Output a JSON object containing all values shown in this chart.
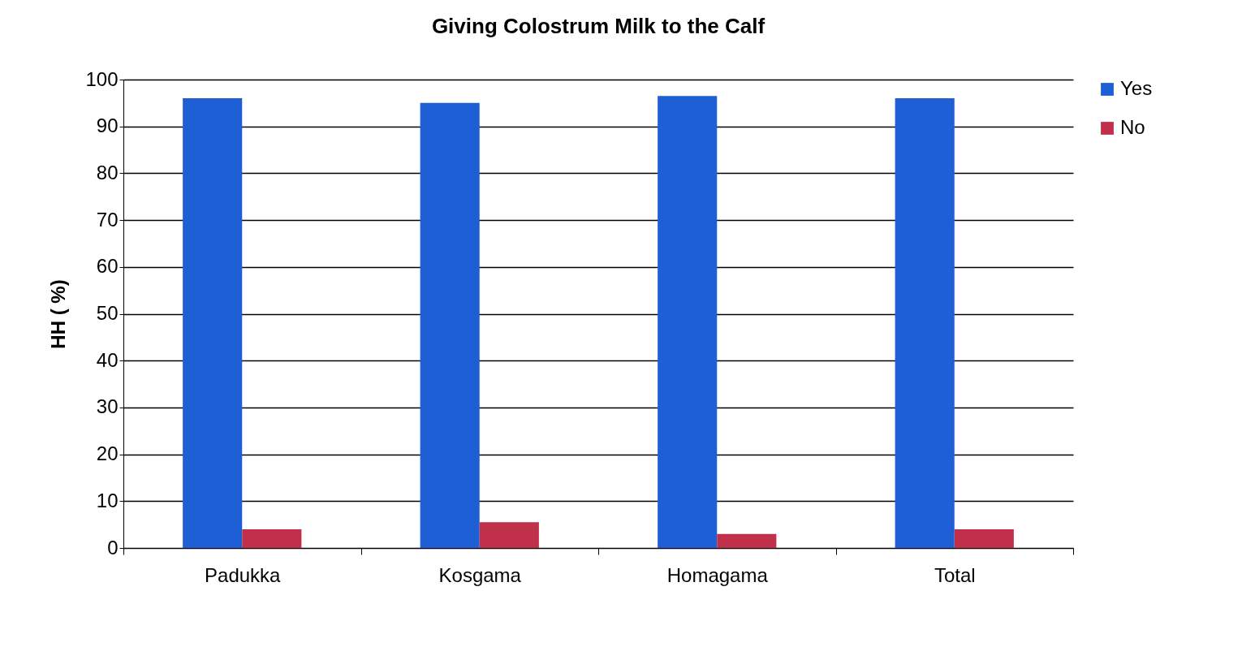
{
  "chart_data": {
    "type": "bar",
    "title": "Giving Colostrum Milk to the Calf",
    "ylabel": "HH ( %)",
    "categories": [
      "Padukka",
      "Kosgama",
      "Homagama",
      "Total"
    ],
    "series": [
      {
        "name": "Yes",
        "color": "#1f5fd6",
        "values": [
          96,
          95,
          96.5,
          96
        ]
      },
      {
        "name": "No",
        "color": "#c0304a",
        "values": [
          4,
          5.5,
          3,
          4
        ]
      }
    ],
    "ylim": [
      0,
      100
    ],
    "yticks": [
      0,
      10,
      20,
      30,
      40,
      50,
      60,
      70,
      80,
      90,
      100
    ],
    "grid": "y",
    "legend": "right"
  }
}
